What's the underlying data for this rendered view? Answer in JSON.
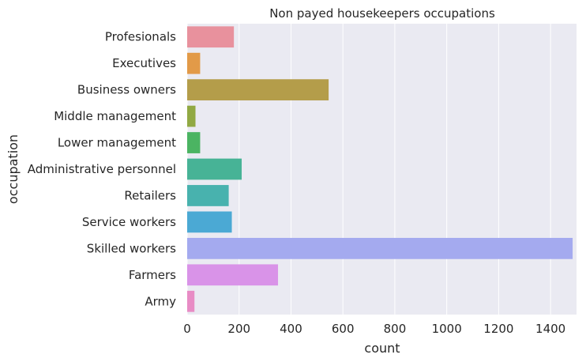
{
  "chart_data": {
    "type": "bar",
    "orientation": "horizontal",
    "title": "Non payed housekeepers occupations",
    "xlabel": "count",
    "ylabel": "occupation",
    "xlim": [
      0,
      1500
    ],
    "xticks": [
      0,
      200,
      400,
      600,
      800,
      1000,
      1200,
      1400
    ],
    "grid": true,
    "categories": [
      "Profesionals",
      "Executives",
      "Business owners",
      "Middle management",
      "Lower management",
      "Administrative personnel",
      "Retailers",
      "Service workers",
      "Skilled workers",
      "Farmers",
      "Army"
    ],
    "values": [
      180,
      50,
      545,
      32,
      50,
      210,
      160,
      172,
      1485,
      350,
      28
    ],
    "colors": [
      "#e8919d",
      "#e29a48",
      "#b49d4a",
      "#91a943",
      "#4bb462",
      "#47b396",
      "#48b2ae",
      "#4ba9d4",
      "#a4aaef",
      "#d993e8",
      "#e88cc5"
    ],
    "background": "#eaeaf2",
    "gridColor": "#ffffff"
  }
}
